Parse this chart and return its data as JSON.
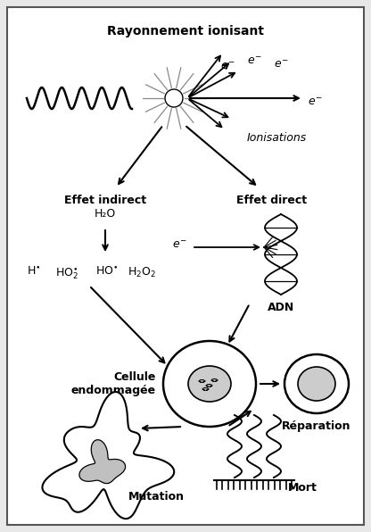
{
  "background_color": "#e8e8e8",
  "panel_color": "#ffffff",
  "text_color": "#000000",
  "title": "Rayonnement ionisant",
  "ionisations_label": "Ionisations",
  "effet_indirect_label": "Effet indirect",
  "h2o_label": "H₂O",
  "effet_direct_label": "Effet direct",
  "adn_label": "ADN",
  "cellule_label": "Cellule\nendommagée",
  "reparation_label": "Réparation",
  "mutation_label": "Mutation",
  "mort_label": "Mort"
}
